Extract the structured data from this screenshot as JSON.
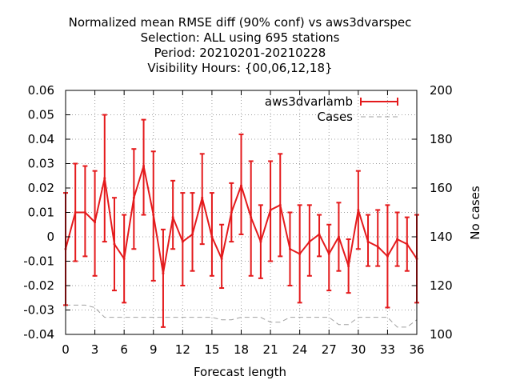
{
  "chart_data": {
    "type": "line",
    "title_lines": [
      "Normalized mean RMSE diff (90% conf) vs aws3dvarspec",
      "Selection: ALL using   695 stations",
      "Period: 20210201-20210228",
      "Visibility   Hours: {00,06,12,18}"
    ],
    "xlabel": "Forecast length",
    "ylabel_right": "No cases",
    "xlim": [
      0,
      36
    ],
    "ylim": [
      -0.04,
      0.06
    ],
    "ylim_right": [
      100,
      200
    ],
    "x_ticks": [
      0,
      3,
      6,
      9,
      12,
      15,
      18,
      21,
      24,
      27,
      30,
      33,
      36
    ],
    "y_ticks": [
      -0.04,
      -0.03,
      -0.02,
      -0.01,
      0,
      0.01,
      0.02,
      0.03,
      0.04,
      0.05,
      0.06
    ],
    "y_tick_labels": [
      "-0.04",
      "-0.03",
      "-0.02",
      "-0.01",
      "0",
      "0.01",
      "0.02",
      "0.03",
      "0.04",
      "0.05",
      "0.06"
    ],
    "y2_ticks": [
      100,
      120,
      140,
      160,
      180,
      200
    ],
    "grid": true,
    "legend_position": "top-right",
    "colors": {
      "diff": "#e41a1c",
      "cases": "#a0a0a0",
      "grid": "#a0a0a0"
    },
    "series": [
      {
        "name": "aws3dvarlamb",
        "style": "line-errorbars",
        "x": [
          0,
          1,
          2,
          3,
          4,
          5,
          6,
          7,
          8,
          9,
          10,
          11,
          12,
          13,
          14,
          15,
          16,
          17,
          18,
          19,
          20,
          21,
          22,
          23,
          24,
          25,
          26,
          27,
          28,
          29,
          30,
          31,
          32,
          33,
          34,
          35,
          36
        ],
        "values": [
          -0.005,
          0.01,
          0.01,
          0.006,
          0.024,
          -0.003,
          -0.009,
          0.016,
          0.029,
          0.009,
          -0.015,
          0.008,
          -0.002,
          0.001,
          0.016,
          0.0,
          -0.009,
          0.01,
          0.021,
          0.008,
          -0.002,
          0.011,
          0.013,
          -0.005,
          -0.007,
          -0.002,
          0.001,
          -0.007,
          0.0,
          -0.012,
          0.011,
          -0.002,
          -0.004,
          -0.008,
          -0.001,
          -0.003,
          -0.009
        ],
        "lower": [
          -0.028,
          -0.01,
          -0.008,
          -0.016,
          -0.002,
          -0.022,
          -0.027,
          -0.005,
          0.009,
          -0.018,
          -0.037,
          -0.005,
          -0.02,
          -0.014,
          -0.003,
          -0.016,
          -0.021,
          -0.002,
          0.001,
          -0.016,
          -0.017,
          -0.01,
          -0.008,
          -0.02,
          -0.027,
          -0.016,
          -0.008,
          -0.022,
          -0.014,
          -0.023,
          -0.005,
          -0.012,
          -0.012,
          -0.029,
          -0.012,
          -0.014,
          -0.027
        ],
        "upper": [
          0.018,
          0.03,
          0.029,
          0.027,
          0.05,
          0.016,
          0.009,
          0.036,
          0.048,
          0.035,
          0.003,
          0.023,
          0.018,
          0.018,
          0.034,
          0.018,
          0.005,
          0.022,
          0.042,
          0.031,
          0.013,
          0.031,
          0.034,
          0.01,
          0.013,
          0.013,
          0.009,
          0.005,
          0.014,
          -0.001,
          0.027,
          0.009,
          0.011,
          0.013,
          0.01,
          0.008,
          0.009
        ]
      },
      {
        "name": "Cases",
        "style": "dashed",
        "axis": "right",
        "x": [
          0,
          1,
          2,
          3,
          4,
          5,
          6,
          7,
          8,
          9,
          10,
          11,
          12,
          13,
          14,
          15,
          16,
          17,
          18,
          19,
          20,
          21,
          22,
          23,
          24,
          25,
          26,
          27,
          28,
          29,
          30,
          31,
          32,
          33,
          34,
          35,
          36
        ],
        "values": [
          112,
          112,
          112,
          111,
          107,
          107,
          107,
          107,
          107,
          107,
          107,
          107,
          107,
          107,
          107,
          107,
          106,
          106,
          107,
          107,
          107,
          105,
          105,
          107,
          107,
          107,
          107,
          107,
          104,
          104,
          107,
          107,
          107,
          107,
          103,
          103,
          106
        ]
      }
    ]
  }
}
